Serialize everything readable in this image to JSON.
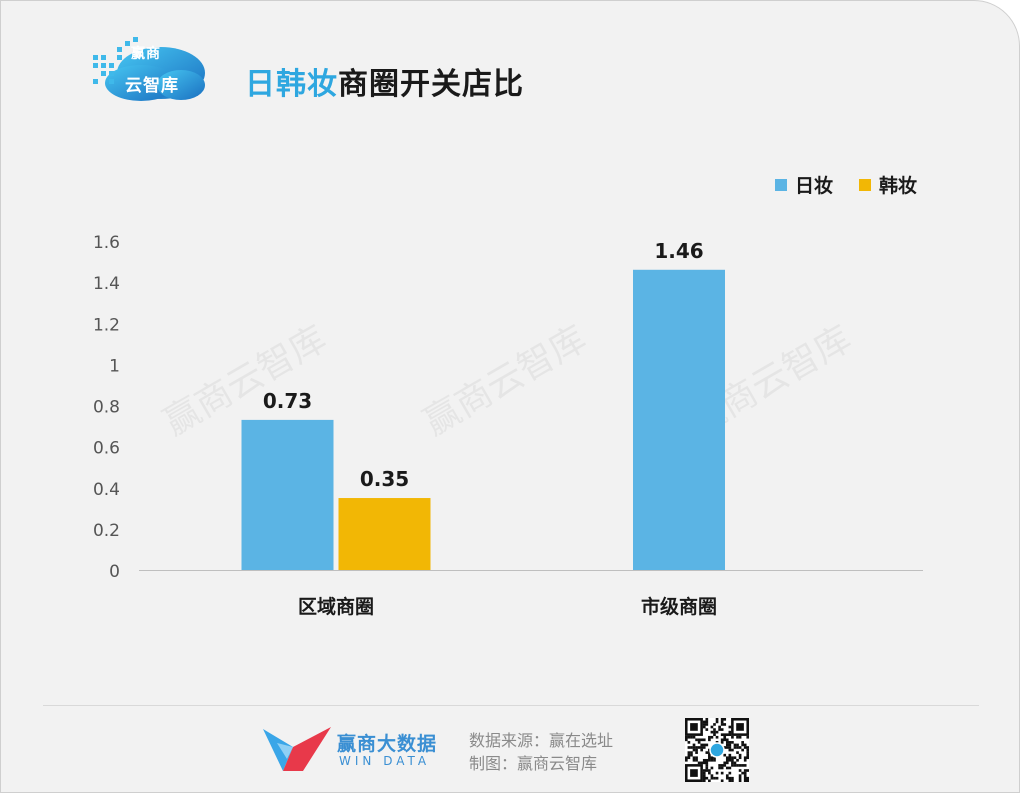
{
  "logo": {
    "line1": "赢商",
    "line2": "云智库"
  },
  "title": {
    "highlight": "日韩妆",
    "rest": "商圈开关店比"
  },
  "legend": [
    {
      "label": "日妆",
      "color": "#5bb4e4"
    },
    {
      "label": "韩妆",
      "color": "#f2b705"
    }
  ],
  "chart_data": {
    "type": "bar",
    "categories": [
      "区域商圈",
      "市级商圈"
    ],
    "series": [
      {
        "name": "日妆",
        "values": [
          0.73,
          1.46
        ],
        "color": "#5bb4e4"
      },
      {
        "name": "韩妆",
        "values": [
          0.35,
          null
        ],
        "color": "#f2b705"
      }
    ],
    "yticks": [
      "0",
      "0.2",
      "0.4",
      "0.6",
      "0.8",
      "1",
      "1.2",
      "1.4",
      "1.6"
    ],
    "ylim": [
      0,
      1.6
    ],
    "grid": false,
    "legend_position": "top-right",
    "watermark": "赢商云智库"
  },
  "footer": {
    "brand_cn": "赢商大数据",
    "brand_en": "WIN DATA",
    "source_line1": "数据来源：赢在选址",
    "source_line2": "制图：赢商云智库"
  }
}
